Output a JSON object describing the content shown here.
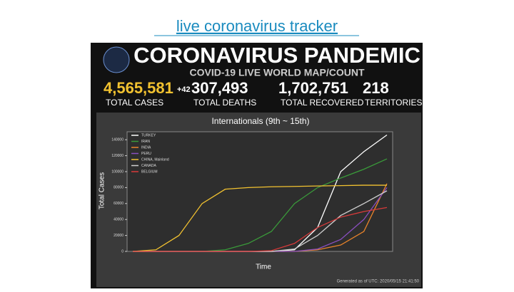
{
  "link": "live coronavirus tracker",
  "banner": {
    "title": "CORONAVIRUS PANDEMIC",
    "subtitle": "COVID-19 LIVE WORLD MAP/COUNT",
    "increment": "+42",
    "stats": [
      {
        "value": "4,565,581",
        "label": "TOTAL CASES"
      },
      {
        "value": "307,493",
        "label": "TOTAL DEATHS"
      },
      {
        "value": "1,702,751",
        "label": "TOTAL RECOVERED"
      },
      {
        "value": "218",
        "label": "TERRITORIES"
      }
    ]
  },
  "chart_data": {
    "type": "line",
    "title": "Internationals (9th ~ 15th)",
    "y_label": "Total Cases",
    "x_label": "Time",
    "categories": [
      null,
      null,
      null,
      null,
      null,
      null,
      null,
      null,
      null,
      null,
      null,
      null
    ],
    "ylim": [
      0,
      150000
    ],
    "yticks": [
      0,
      20000,
      40000,
      60000,
      80000,
      100000,
      120000,
      140000
    ],
    "series": [
      {
        "name": "TURKEY",
        "color": "#ffffff",
        "values": [
          0,
          0,
          0,
          0,
          0,
          0,
          0,
          2000,
          30000,
          100000,
          125000,
          146000
        ]
      },
      {
        "name": "IRAN",
        "color": "#3a9a3a",
        "values": [
          0,
          0,
          0,
          0,
          2000,
          10000,
          25000,
          60000,
          80000,
          92000,
          103000,
          116000
        ]
      },
      {
        "name": "INDIA",
        "color": "#e8832a",
        "values": [
          0,
          0,
          0,
          0,
          0,
          0,
          0,
          0,
          2000,
          8000,
          25000,
          85000
        ]
      },
      {
        "name": "PERU",
        "color": "#8a4fc0",
        "values": [
          0,
          0,
          0,
          0,
          0,
          0,
          0,
          0,
          3000,
          15000,
          40000,
          80000
        ]
      },
      {
        "name": "CHINA, Mainland",
        "color": "#f2c230",
        "values": [
          0,
          2000,
          20000,
          60000,
          78000,
          80000,
          81000,
          81500,
          82000,
          82500,
          83000,
          83000
        ]
      },
      {
        "name": "CANADA",
        "color": "#cfcfcf",
        "values": [
          0,
          0,
          0,
          0,
          0,
          0,
          0,
          3000,
          20000,
          45000,
          60000,
          76000
        ]
      },
      {
        "name": "BELGIUM",
        "color": "#d83a3a",
        "values": [
          0,
          0,
          0,
          0,
          0,
          0,
          1000,
          10000,
          30000,
          43000,
          50000,
          55000
        ]
      }
    ],
    "footer": "Generated as of UTC: 2020/05/15 21:41:50"
  }
}
